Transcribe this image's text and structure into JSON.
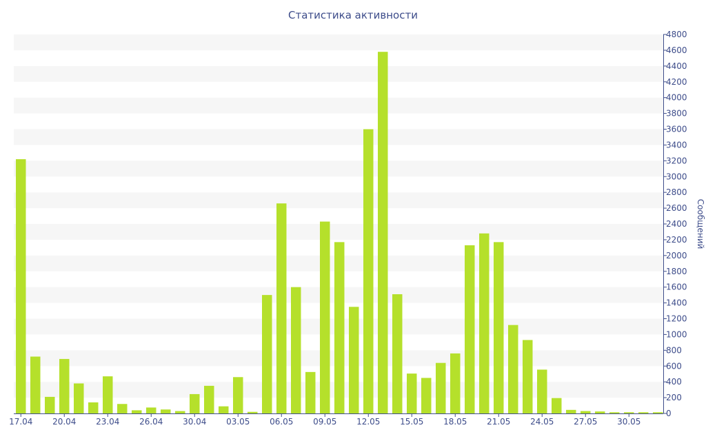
{
  "chart_data": {
    "type": "bar",
    "title": "Статистика активности",
    "xlabel": "",
    "ylabel": "Сообщений",
    "ylim": [
      0,
      4800
    ],
    "ytick_step": 200,
    "grid": "horizontal bands",
    "y_axis_side": "right",
    "colors": {
      "bar": "#b5e02b",
      "band": "#f6f6f6",
      "axis": "#3d4c8a",
      "text": "#3d4c8a"
    },
    "x_tick_labels": [
      "17.04",
      "20.04",
      "23.04",
      "26.04",
      "30.04",
      "03.05",
      "06.05",
      "09.05",
      "12.05",
      "15.05",
      "18.05",
      "21.05",
      "24.05",
      "27.05",
      "30.05"
    ],
    "values": [
      3220,
      720,
      210,
      690,
      380,
      140,
      470,
      120,
      40,
      75,
      50,
      30,
      245,
      350,
      90,
      460,
      20,
      1500,
      2660,
      1600,
      525,
      2430,
      2170,
      1350,
      3600,
      4580,
      1510,
      505,
      450,
      640,
      760,
      2130,
      2280,
      2170,
      1120,
      930,
      555,
      195,
      45,
      30,
      25,
      15,
      15,
      15,
      15
    ]
  }
}
